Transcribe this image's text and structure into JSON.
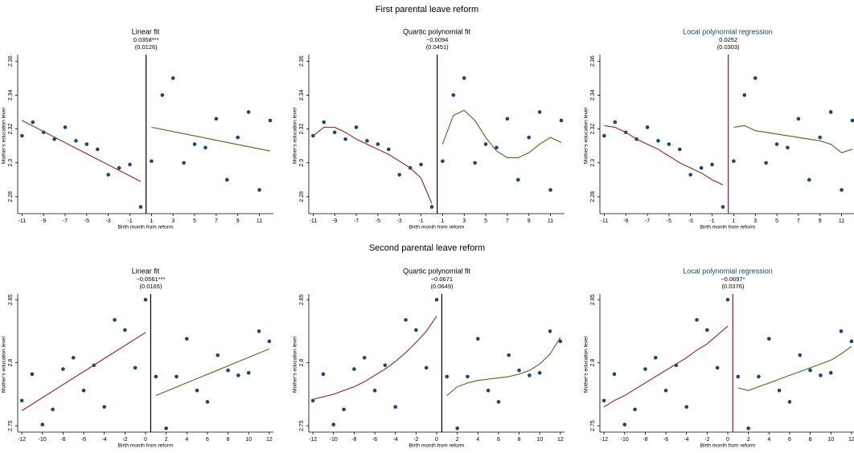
{
  "row_titles": [
    "First parental leave reform",
    "Second parental leave reform"
  ],
  "chart_data": [
    {
      "type": "scatter",
      "title": "Linear fit",
      "title_color": "#000000",
      "annotation": [
        "0.0358***",
        "(0.0126)"
      ],
      "xlabel": "Birth month from reform",
      "ylabel": "Mother's education level",
      "xlim": [
        -11.4,
        12.3
      ],
      "xticks": [
        -11,
        -9,
        -7,
        -5,
        -3,
        -1,
        1,
        3,
        5,
        7,
        9,
        11
      ],
      "ylim": [
        2.27,
        2.362
      ],
      "yticks": [
        2.28,
        2.3,
        2.32,
        2.34,
        2.36
      ],
      "cutoff": 0.5,
      "cutoff_color": "#000000",
      "series": [
        {
          "kind": "points",
          "color": "#1a476f",
          "x": [
            -11,
            -10,
            -9,
            -8,
            -7,
            -6,
            -5,
            -4,
            -3,
            -2,
            -1,
            0,
            1,
            2,
            3,
            4,
            5,
            6,
            7,
            8,
            9,
            10,
            11,
            12
          ],
          "values": [
            2.316,
            2.324,
            2.318,
            2.314,
            2.321,
            2.313,
            2.311,
            2.308,
            2.293,
            2.297,
            2.299,
            2.274,
            2.301,
            2.34,
            2.35,
            2.3,
            2.311,
            2.309,
            2.326,
            2.29,
            2.315,
            2.33,
            2.284,
            2.325
          ]
        },
        {
          "kind": "line",
          "color": "#90353b",
          "x": [
            -11,
            0
          ],
          "values": [
            2.325,
            2.289
          ]
        },
        {
          "kind": "line",
          "color": "#55752f",
          "x": [
            1,
            12
          ],
          "values": [
            2.321,
            2.307
          ]
        }
      ]
    },
    {
      "type": "scatter",
      "title": "Quartic polynomial fit",
      "title_color": "#000000",
      "annotation": [
        "−0.0094",
        "(0.0451)"
      ],
      "xlabel": "Birth month from reform",
      "ylabel": "Mother's education level",
      "xlim": [
        -11.4,
        12.3
      ],
      "xticks": [
        -11,
        -9,
        -7,
        -5,
        -3,
        -1,
        1,
        3,
        5,
        7,
        9,
        11
      ],
      "ylim": [
        2.27,
        2.362
      ],
      "yticks": [
        2.28,
        2.3,
        2.32,
        2.34,
        2.36
      ],
      "cutoff": 0.5,
      "cutoff_color": "#000000",
      "series": [
        {
          "kind": "points",
          "color": "#1a476f",
          "x": [
            -11,
            -10,
            -9,
            -8,
            -7,
            -6,
            -5,
            -4,
            -3,
            -2,
            -1,
            0,
            1,
            2,
            3,
            4,
            5,
            6,
            7,
            8,
            9,
            10,
            11,
            12
          ],
          "values": [
            2.316,
            2.324,
            2.318,
            2.314,
            2.321,
            2.313,
            2.311,
            2.308,
            2.293,
            2.297,
            2.299,
            2.274,
            2.301,
            2.34,
            2.35,
            2.3,
            2.311,
            2.309,
            2.326,
            2.29,
            2.315,
            2.33,
            2.284,
            2.325
          ]
        },
        {
          "kind": "line",
          "color": "#90353b",
          "x": [
            -11,
            -10,
            -9,
            -8,
            -7,
            -6,
            -5,
            -4,
            -3,
            -2,
            -1,
            0
          ],
          "values": [
            2.316,
            2.321,
            2.321,
            2.318,
            2.314,
            2.311,
            2.308,
            2.305,
            2.301,
            2.297,
            2.291,
            2.276
          ]
        },
        {
          "kind": "line",
          "color": "#55752f",
          "x": [
            1,
            2,
            3,
            4,
            5,
            6,
            7,
            8,
            9,
            10,
            11,
            12
          ],
          "values": [
            2.311,
            2.328,
            2.331,
            2.325,
            2.315,
            2.307,
            2.303,
            2.303,
            2.306,
            2.311,
            2.315,
            2.312
          ]
        }
      ]
    },
    {
      "type": "scatter",
      "title": "Local polynomial regression",
      "title_color": "#1a476f",
      "annotation": [
        "0.0252",
        "(0.0303)"
      ],
      "xlabel": "Birth month from reform",
      "ylabel": "Mother's education level",
      "xlim": [
        -11.4,
        12.3
      ],
      "xticks": [
        -11,
        -9,
        -7,
        -5,
        -3,
        -1,
        1,
        3,
        5,
        7,
        9,
        11
      ],
      "ylim": [
        2.27,
        2.362
      ],
      "yticks": [
        2.28,
        2.3,
        2.32,
        2.34,
        2.36
      ],
      "cutoff": 0.5,
      "cutoff_color": "#c10534",
      "series": [
        {
          "kind": "points",
          "color": "#1a476f",
          "x": [
            -11,
            -10,
            -9,
            -8,
            -7,
            -6,
            -5,
            -4,
            -3,
            -2,
            -1,
            0,
            1,
            2,
            3,
            4,
            5,
            6,
            7,
            8,
            9,
            10,
            11,
            12
          ],
          "values": [
            2.316,
            2.324,
            2.318,
            2.314,
            2.321,
            2.313,
            2.311,
            2.308,
            2.293,
            2.297,
            2.299,
            2.274,
            2.301,
            2.34,
            2.35,
            2.3,
            2.311,
            2.309,
            2.326,
            2.29,
            2.315,
            2.33,
            2.284,
            2.325
          ]
        },
        {
          "kind": "line",
          "color": "#90353b",
          "x": [
            -11,
            -10,
            -9,
            -8,
            -7,
            -6,
            -5,
            -4,
            -3,
            -2,
            -1,
            0
          ],
          "values": [
            2.322,
            2.321,
            2.318,
            2.314,
            2.311,
            2.308,
            2.304,
            2.3,
            2.297,
            2.294,
            2.29,
            2.287
          ]
        },
        {
          "kind": "line",
          "color": "#55752f",
          "x": [
            1,
            2,
            3,
            4,
            5,
            6,
            7,
            8,
            9,
            10,
            11,
            12
          ],
          "values": [
            2.321,
            2.322,
            2.319,
            2.318,
            2.317,
            2.316,
            2.315,
            2.314,
            2.313,
            2.311,
            2.306,
            2.308
          ]
        }
      ]
    },
    {
      "type": "scatter",
      "title": "Linear fit",
      "title_color": "#000000",
      "annotation": [
        "−0.0561***",
        "(0.0165)"
      ],
      "xlabel": "Birth month from reform",
      "ylabel": "Mother's education level",
      "xlim": [
        -12.4,
        12.4
      ],
      "xticks": [
        -12,
        -10,
        -8,
        -6,
        -4,
        -2,
        0,
        2,
        4,
        6,
        8,
        10,
        12
      ],
      "ylim": [
        2.745,
        2.852
      ],
      "yticks": [
        2.75,
        2.8,
        2.85
      ],
      "cutoff": 0.5,
      "cutoff_color": "#000000",
      "series": [
        {
          "kind": "points",
          "color": "#1a476f",
          "x": [
            -12,
            -11,
            -10,
            -9,
            -8,
            -7,
            -6,
            -5,
            -4,
            -3,
            -2,
            -1,
            0,
            1,
            2,
            3,
            4,
            5,
            6,
            7,
            8,
            9,
            10,
            11,
            12
          ],
          "values": [
            2.77,
            2.791,
            2.751,
            2.763,
            2.795,
            2.804,
            2.778,
            2.798,
            2.765,
            2.834,
            2.826,
            2.796,
            2.85,
            2.789,
            2.748,
            2.789,
            2.819,
            2.778,
            2.769,
            2.806,
            2.794,
            2.79,
            2.792,
            2.825,
            2.817
          ]
        },
        {
          "kind": "line",
          "color": "#90353b",
          "x": [
            -12,
            0
          ],
          "values": [
            2.762,
            2.824
          ]
        },
        {
          "kind": "line",
          "color": "#55752f",
          "x": [
            1,
            12
          ],
          "values": [
            2.774,
            2.811
          ]
        }
      ]
    },
    {
      "type": "scatter",
      "title": "Quartic polynomial fit",
      "title_color": "#000000",
      "annotation": [
        "−0.0671",
        "(0.0649)"
      ],
      "xlabel": "Birth month from reform",
      "ylabel": "Mother's education level",
      "xlim": [
        -12.4,
        12.4
      ],
      "xticks": [
        -12,
        -10,
        -8,
        -6,
        -4,
        -2,
        0,
        2,
        4,
        6,
        8,
        10,
        12
      ],
      "ylim": [
        2.745,
        2.852
      ],
      "yticks": [
        2.75,
        2.8,
        2.85
      ],
      "cutoff": 0.5,
      "cutoff_color": "#000000",
      "series": [
        {
          "kind": "points",
          "color": "#1a476f",
          "x": [
            -12,
            -11,
            -10,
            -9,
            -8,
            -7,
            -6,
            -5,
            -4,
            -3,
            -2,
            -1,
            0,
            1,
            2,
            3,
            4,
            5,
            6,
            7,
            8,
            9,
            10,
            11,
            12
          ],
          "values": [
            2.77,
            2.791,
            2.751,
            2.763,
            2.795,
            2.804,
            2.778,
            2.798,
            2.765,
            2.834,
            2.826,
            2.796,
            2.85,
            2.789,
            2.748,
            2.789,
            2.819,
            2.778,
            2.769,
            2.806,
            2.794,
            2.79,
            2.792,
            2.825,
            2.817
          ]
        },
        {
          "kind": "line",
          "color": "#90353b",
          "x": [
            -12,
            -11,
            -10,
            -9,
            -8,
            -7,
            -6,
            -5,
            -4,
            -3,
            -2,
            -1,
            0
          ],
          "values": [
            2.771,
            2.773,
            2.775,
            2.778,
            2.781,
            2.785,
            2.79,
            2.795,
            2.801,
            2.808,
            2.816,
            2.825,
            2.837
          ]
        },
        {
          "kind": "line",
          "color": "#55752f",
          "x": [
            1,
            2,
            3,
            4,
            5,
            6,
            7,
            8,
            9,
            10,
            11,
            12
          ],
          "values": [
            2.774,
            2.781,
            2.784,
            2.786,
            2.787,
            2.788,
            2.789,
            2.791,
            2.794,
            2.799,
            2.807,
            2.82
          ]
        }
      ]
    },
    {
      "type": "scatter",
      "title": "Local polynomial regression",
      "title_color": "#1a476f",
      "annotation": [
        "−0.0697*",
        "(0.0376)"
      ],
      "xlabel": "Birth month from reform",
      "ylabel": "Mother's education level",
      "xlim": [
        -12.4,
        12.4
      ],
      "xticks": [
        -12,
        -10,
        -8,
        -6,
        -4,
        -2,
        0,
        2,
        4,
        6,
        8,
        10,
        12
      ],
      "ylim": [
        2.745,
        2.852
      ],
      "yticks": [
        2.75,
        2.8,
        2.85
      ],
      "cutoff": 0.5,
      "cutoff_color": "#c10534",
      "series": [
        {
          "kind": "points",
          "color": "#1a476f",
          "x": [
            -12,
            -11,
            -10,
            -9,
            -8,
            -7,
            -6,
            -5,
            -4,
            -3,
            -2,
            -1,
            0,
            1,
            2,
            3,
            4,
            5,
            6,
            7,
            8,
            9,
            10,
            11,
            12
          ],
          "values": [
            2.77,
            2.791,
            2.751,
            2.763,
            2.795,
            2.804,
            2.778,
            2.798,
            2.765,
            2.834,
            2.826,
            2.796,
            2.85,
            2.789,
            2.748,
            2.789,
            2.819,
            2.778,
            2.769,
            2.806,
            2.794,
            2.79,
            2.792,
            2.825,
            2.817
          ]
        },
        {
          "kind": "line",
          "color": "#90353b",
          "x": [
            -12,
            -11,
            -10,
            -9,
            -8,
            -7,
            -6,
            -5,
            -4,
            -3,
            -2,
            -1,
            0
          ],
          "values": [
            2.765,
            2.77,
            2.774,
            2.779,
            2.784,
            2.789,
            2.794,
            2.799,
            2.804,
            2.81,
            2.815,
            2.822,
            2.829
          ]
        },
        {
          "kind": "line",
          "color": "#55752f",
          "x": [
            1,
            2,
            3,
            4,
            5,
            6,
            7,
            8,
            9,
            10,
            11,
            12
          ],
          "values": [
            2.78,
            2.778,
            2.781,
            2.784,
            2.787,
            2.79,
            2.793,
            2.796,
            2.799,
            2.802,
            2.807,
            2.813
          ]
        }
      ]
    }
  ]
}
